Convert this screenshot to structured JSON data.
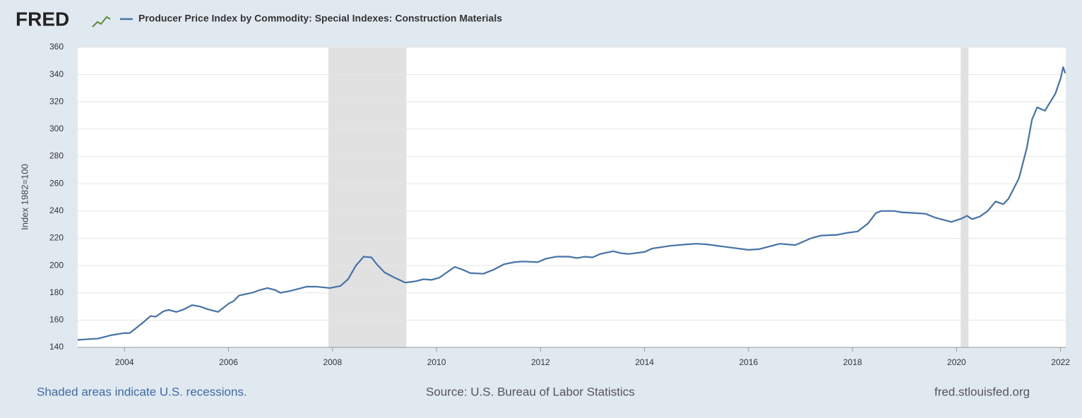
{
  "chart_data": {
    "type": "line",
    "logo": "FRED",
    "y_label": "Index 1982=100",
    "note": "Shaded areas indicate U.S. recessions.",
    "source": "Source: U.S. Bureau of Labor Statistics",
    "site": "fred.stlouisfed.org",
    "xlim": [
      2003.1,
      2022.1
    ],
    "ylim": [
      140,
      360
    ],
    "xticks": [
      2004,
      2006,
      2008,
      2010,
      2012,
      2014,
      2016,
      2018,
      2020,
      2022
    ],
    "yticks": [
      140,
      160,
      180,
      200,
      220,
      240,
      260,
      280,
      300,
      320,
      340,
      360
    ],
    "grid": true,
    "recessions": [
      [
        2007.92,
        2009.42
      ],
      [
        2020.08,
        2020.23
      ]
    ],
    "recession_color": "#e1e1e1",
    "x": [
      2003.1,
      2003.5,
      2003.75,
      2004.0,
      2004.1,
      2004.35,
      2004.5,
      2004.6,
      2004.75,
      2004.85,
      2005.0,
      2005.15,
      2005.3,
      2005.45,
      2005.6,
      2005.8,
      2006.0,
      2006.1,
      2006.2,
      2006.45,
      2006.6,
      2006.75,
      2006.9,
      2007.0,
      2007.2,
      2007.5,
      2007.7,
      2007.95,
      2008.15,
      2008.3,
      2008.45,
      2008.6,
      2008.75,
      2008.85,
      2009.0,
      2009.2,
      2009.4,
      2009.6,
      2009.75,
      2009.9,
      2010.05,
      2010.2,
      2010.35,
      2010.5,
      2010.65,
      2010.9,
      2011.1,
      2011.3,
      2011.5,
      2011.65,
      2011.95,
      2012.1,
      2012.3,
      2012.55,
      2012.7,
      2012.85,
      2013.0,
      2013.15,
      2013.4,
      2013.55,
      2013.7,
      2014.0,
      2014.15,
      2014.5,
      2014.8,
      2015.0,
      2015.2,
      2015.5,
      2015.8,
      2016.0,
      2016.2,
      2016.4,
      2016.6,
      2016.9,
      2017.2,
      2017.4,
      2017.7,
      2017.9,
      2018.1,
      2018.3,
      2018.45,
      2018.55,
      2018.8,
      2018.95,
      2019.2,
      2019.4,
      2019.6,
      2019.9,
      2020.1,
      2020.2,
      2020.3,
      2020.45,
      2020.6,
      2020.75,
      2020.9,
      2021.0,
      2021.2,
      2021.35,
      2021.45,
      2021.55,
      2021.7,
      2021.9,
      2022.0,
      2022.05,
      2022.09
    ],
    "series": [
      {
        "name": "Producer Price Index by Commodity: Special Indexes: Construction Materials",
        "color": "#4572a7",
        "values": [
          145.5,
          146.5,
          149,
          150.5,
          150.5,
          158,
          163,
          162.5,
          166.5,
          167.5,
          166,
          168,
          171,
          170,
          168,
          166,
          172,
          174,
          178,
          180,
          182,
          183.5,
          182,
          180,
          181.5,
          184.5,
          184.5,
          183.5,
          185,
          190,
          200,
          206.5,
          206,
          201,
          195,
          191,
          187.5,
          188.5,
          190,
          189.5,
          191,
          195,
          199,
          197,
          194.5,
          194,
          197,
          201,
          202.5,
          203,
          202.5,
          205,
          206.5,
          206.5,
          205.5,
          206.5,
          206,
          208.5,
          210.5,
          209,
          208.5,
          210,
          212.5,
          214.5,
          215.5,
          216,
          215.5,
          214,
          212.5,
          211.5,
          212,
          214,
          216,
          215,
          220,
          222,
          222.5,
          224,
          225,
          231,
          238.5,
          240,
          240,
          239,
          238.5,
          238,
          235,
          232,
          234.5,
          236.5,
          234,
          236,
          240,
          247,
          245,
          249,
          264,
          286,
          307,
          316,
          313.5,
          326,
          337,
          345.5,
          341
        ]
      }
    ]
  }
}
